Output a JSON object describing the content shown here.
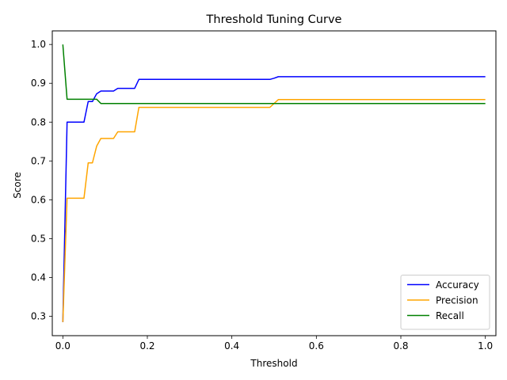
{
  "chart_data": {
    "type": "line",
    "title": "Threshold Tuning Curve",
    "xlabel": "Threshold",
    "ylabel": "Score",
    "xlim": [
      -0.025,
      1.025
    ],
    "ylim": [
      0.25,
      1.035
    ],
    "xticks": [
      0.0,
      0.2,
      0.4,
      0.6,
      0.8,
      1.0
    ],
    "xtick_labels": [
      "0.0",
      "0.2",
      "0.4",
      "0.6",
      "0.8",
      "1.0"
    ],
    "yticks": [
      0.3,
      0.4,
      0.5,
      0.6,
      0.7,
      0.8,
      0.9,
      1.0
    ],
    "ytick_labels": [
      "0.3",
      "0.4",
      "0.5",
      "0.6",
      "0.7",
      "0.8",
      "0.9",
      "1.0"
    ],
    "grid": false,
    "legend_position": "lower-right",
    "series": [
      {
        "name": "Accuracy",
        "color": "#0000ff",
        "x": [
          0.0,
          0.01,
          0.05,
          0.06,
          0.07,
          0.08,
          0.09,
          0.1,
          0.12,
          0.13,
          0.17,
          0.18,
          0.49,
          0.5,
          0.51,
          1.0
        ],
        "y": [
          0.285,
          0.8,
          0.8,
          0.853,
          0.853,
          0.873,
          0.88,
          0.88,
          0.88,
          0.887,
          0.887,
          0.91,
          0.91,
          0.913,
          0.917,
          0.917
        ]
      },
      {
        "name": "Precision",
        "color": "#ffa500",
        "x": [
          0.0,
          0.01,
          0.05,
          0.06,
          0.07,
          0.08,
          0.09,
          0.1,
          0.12,
          0.13,
          0.17,
          0.18,
          0.49,
          0.5,
          0.51,
          1.0
        ],
        "y": [
          0.285,
          0.604,
          0.604,
          0.695,
          0.695,
          0.738,
          0.758,
          0.758,
          0.758,
          0.775,
          0.775,
          0.838,
          0.838,
          0.848,
          0.858,
          0.858
        ]
      },
      {
        "name": "Recall",
        "color": "#008000",
        "x": [
          0.0,
          0.01,
          0.08,
          0.09,
          1.0
        ],
        "y": [
          1.0,
          0.859,
          0.859,
          0.848,
          0.848
        ]
      }
    ]
  }
}
